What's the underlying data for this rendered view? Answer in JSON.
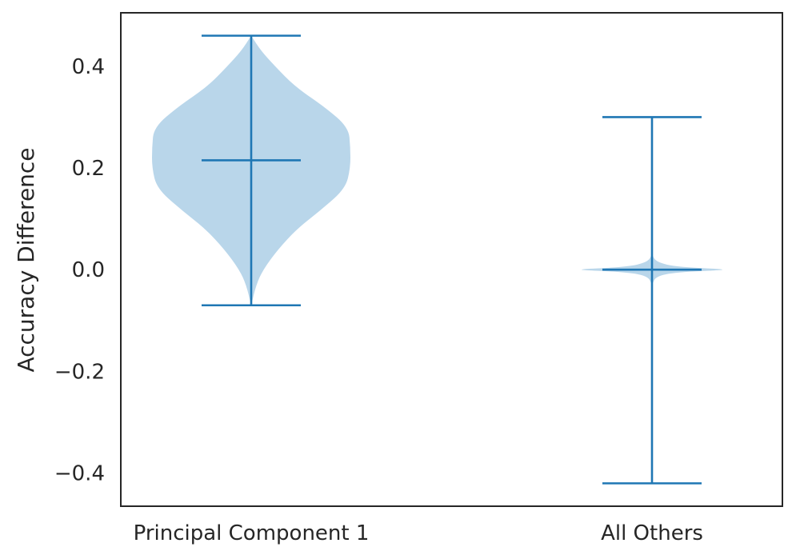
{
  "chart_data": {
    "type": "violin",
    "title": "",
    "xlabel": "",
    "ylabel": "Accuracy Difference",
    "ylim": [
      -0.465,
      0.505
    ],
    "grid": false,
    "categories": [
      "Principal Component 1",
      "All Others"
    ],
    "y_ticks": [
      {
        "value": 0.4,
        "label": "0.4"
      },
      {
        "value": 0.2,
        "label": "0.2"
      },
      {
        "value": 0.0,
        "label": "0.0"
      },
      {
        "value": -0.2,
        "label": "−0.2"
      },
      {
        "value": -0.4,
        "label": "−0.4"
      }
    ],
    "series": [
      {
        "category": "Principal Component 1",
        "min": -0.07,
        "median": 0.215,
        "max": 0.46,
        "density_profile": [
          {
            "y": -0.07,
            "w": 0.0
          },
          {
            "y": -0.03,
            "w": 0.05
          },
          {
            "y": 0.0,
            "w": 0.12
          },
          {
            "y": 0.04,
            "w": 0.27
          },
          {
            "y": 0.08,
            "w": 0.46
          },
          {
            "y": 0.12,
            "w": 0.72
          },
          {
            "y": 0.16,
            "w": 0.95
          },
          {
            "y": 0.2,
            "w": 1.0
          },
          {
            "y": 0.24,
            "w": 1.0
          },
          {
            "y": 0.28,
            "w": 0.98
          },
          {
            "y": 0.32,
            "w": 0.74
          },
          {
            "y": 0.36,
            "w": 0.44
          },
          {
            "y": 0.4,
            "w": 0.24
          },
          {
            "y": 0.43,
            "w": 0.1
          },
          {
            "y": 0.46,
            "w": 0.0
          }
        ]
      },
      {
        "category": "All Others",
        "min": -0.42,
        "median": 0.0,
        "max": 0.3,
        "density_profile": [
          {
            "y": -0.03,
            "w": 0.0
          },
          {
            "y": -0.012,
            "w": 0.05
          },
          {
            "y": -0.004,
            "w": 0.35
          },
          {
            "y": 0.0,
            "w": 1.0
          },
          {
            "y": 0.005,
            "w": 0.3
          },
          {
            "y": 0.015,
            "w": 0.05
          },
          {
            "y": 0.03,
            "w": 0.0
          }
        ]
      }
    ],
    "colors": {
      "fill": "#b9d6ea",
      "line": "#1f77b4",
      "frame": "#262626"
    }
  }
}
